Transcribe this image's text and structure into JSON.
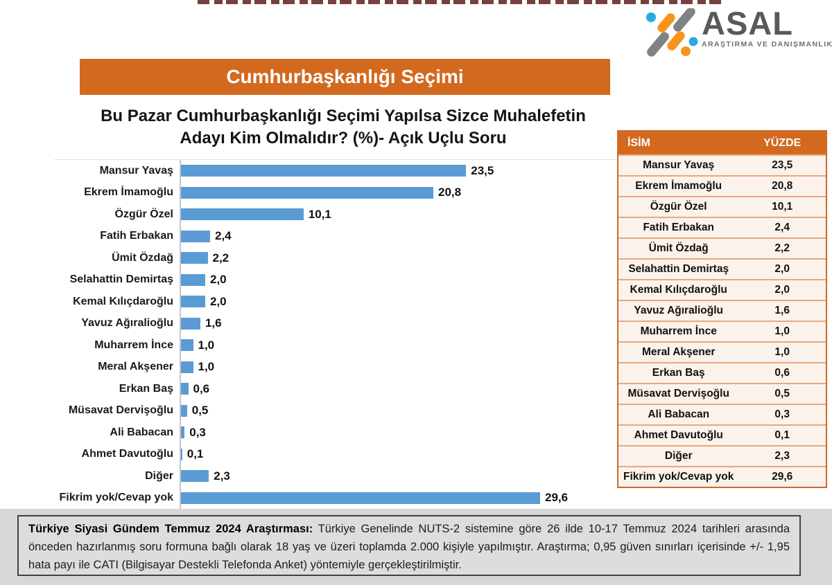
{
  "header": {
    "logo": {
      "name": "ASAL",
      "subtitle": "ARAŞTIRMA VE DANIŞMANLIK"
    },
    "banner_title": "Cumhurbaşkanlığı Seçimi"
  },
  "chart_data": {
    "type": "bar",
    "orientation": "horizontal",
    "title": "Bu Pazar Cumhurbaşkanlığı Seçimi Yapılsa Sizce Muhalefetin Adayı Kim Olmalıdır? (%)- Açık Uçlu Soru",
    "title_line1": "Bu Pazar Cumhurbaşkanlığı Seçimi Yapılsa Sizce Muhalefetin",
    "title_line2": "Adayı Kim Olmalıdır? (%)- Açık Uçlu Soru",
    "categories": [
      "Mansur Yavaş",
      "Ekrem İmamoğlu",
      "Özgür Özel",
      "Fatih Erbakan",
      "Ümit Özdağ",
      "Selahattin Demirtaş",
      "Kemal Kılıçdaroğlu",
      "Yavuz Ağıralioğlu",
      "Muharrem İnce",
      "Meral Akşener",
      "Erkan Baş",
      "Müsavat Dervişoğlu",
      "Ali Babacan",
      "Ahmet Davutoğlu",
      "Diğer",
      "Fikrim yok/Cevap yok"
    ],
    "values": [
      23.5,
      20.8,
      10.1,
      2.4,
      2.2,
      2.0,
      2.0,
      1.6,
      1.0,
      1.0,
      0.6,
      0.5,
      0.3,
      0.1,
      2.3,
      29.6
    ],
    "value_labels": [
      "23,5",
      "20,8",
      "10,1",
      "2,4",
      "2,2",
      "2,0",
      "2,0",
      "1,6",
      "1,0",
      "1,0",
      "0,6",
      "0,5",
      "0,3",
      "0,1",
      "2,3",
      "29,6"
    ],
    "xlim": [
      0,
      35
    ],
    "grid": false,
    "legend": false,
    "bar_color": "#5B9BD5",
    "xlabel": "",
    "ylabel": ""
  },
  "table": {
    "headers": [
      "İSİM",
      "YÜZDE"
    ],
    "rows": [
      [
        "Mansur Yavaş",
        "23,5"
      ],
      [
        "Ekrem İmamoğlu",
        "20,8"
      ],
      [
        "Özgür Özel",
        "10,1"
      ],
      [
        "Fatih Erbakan",
        "2,4"
      ],
      [
        "Ümit Özdağ",
        "2,2"
      ],
      [
        "Selahattin Demirtaş",
        "2,0"
      ],
      [
        "Kemal Kılıçdaroğlu",
        "2,0"
      ],
      [
        "Yavuz Ağıralioğlu",
        "1,6"
      ],
      [
        "Muharrem İnce",
        "1,0"
      ],
      [
        "Meral Akşener",
        "1,0"
      ],
      [
        "Erkan Baş",
        "0,6"
      ],
      [
        "Müsavat Dervişoğlu",
        "0,5"
      ],
      [
        "Ali Babacan",
        "0,3"
      ],
      [
        "Ahmet Davutoğlu",
        "0,1"
      ],
      [
        "Diğer",
        "2,3"
      ],
      [
        "Fikrim yok/Cevap yok",
        "29,6"
      ]
    ]
  },
  "footer": {
    "lead": "Türkiye Siyasi Gündem Temmuz 2024 Araştırması:",
    "body": " Türkiye Genelinde  NUTS-2 sistemine göre 26 ilde 10-17 Temmuz 2024 tarihleri arasında önceden  hazırlanmış soru formuna bağlı olarak 18 yaş ve üzeri toplamda 2.000 kişiyle yapılmıştır. Araştırma; 0,95 güven sınırları içerisinde +/- 1,95 hata payı ile CATI (Bilgisayar Destekli Telefonda Anket) yöntemiyle gerçekleştirilmiştir."
  },
  "colors": {
    "accent_orange": "#D2691E",
    "bar_blue": "#5B9BD5",
    "table_row_bg": "#FBF2EB",
    "table_border": "#E8A87E",
    "logo_blue": "#29ABE2",
    "logo_orange": "#F7941D",
    "logo_gray": "#808285",
    "footer_band": "#D7D7D7"
  }
}
